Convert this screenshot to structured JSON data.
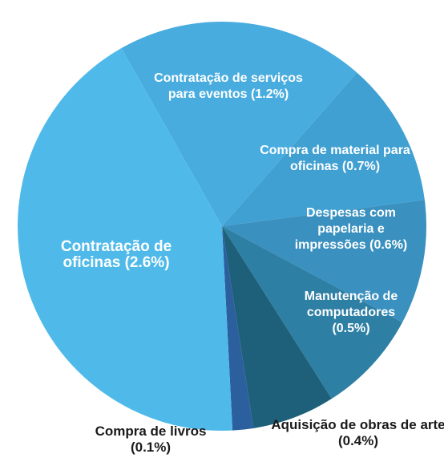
{
  "chart_data": {
    "type": "pie",
    "categories": [
      "Contratação de serviços para eventos",
      "Compra de material para oficinas",
      "Despesas com papelaria e impressões",
      "Manutenção de computadores",
      "Aquisição de obras de arte",
      "Compra de livros",
      "Contratação de oficinas"
    ],
    "values": [
      1.2,
      0.7,
      0.6,
      0.5,
      0.4,
      0.1,
      2.6
    ],
    "value_labels": [
      "(1.2%)",
      "(0.7%)",
      "(0.6%)",
      "(0.5%)",
      "(0.4%)",
      "(0.1%)",
      "(2.6%)"
    ],
    "colors": [
      "#48acdf",
      "#40a0d2",
      "#3a90be",
      "#2e7fa4",
      "#1e6079",
      "#2b5f9e",
      "#4fbaea"
    ]
  }
}
